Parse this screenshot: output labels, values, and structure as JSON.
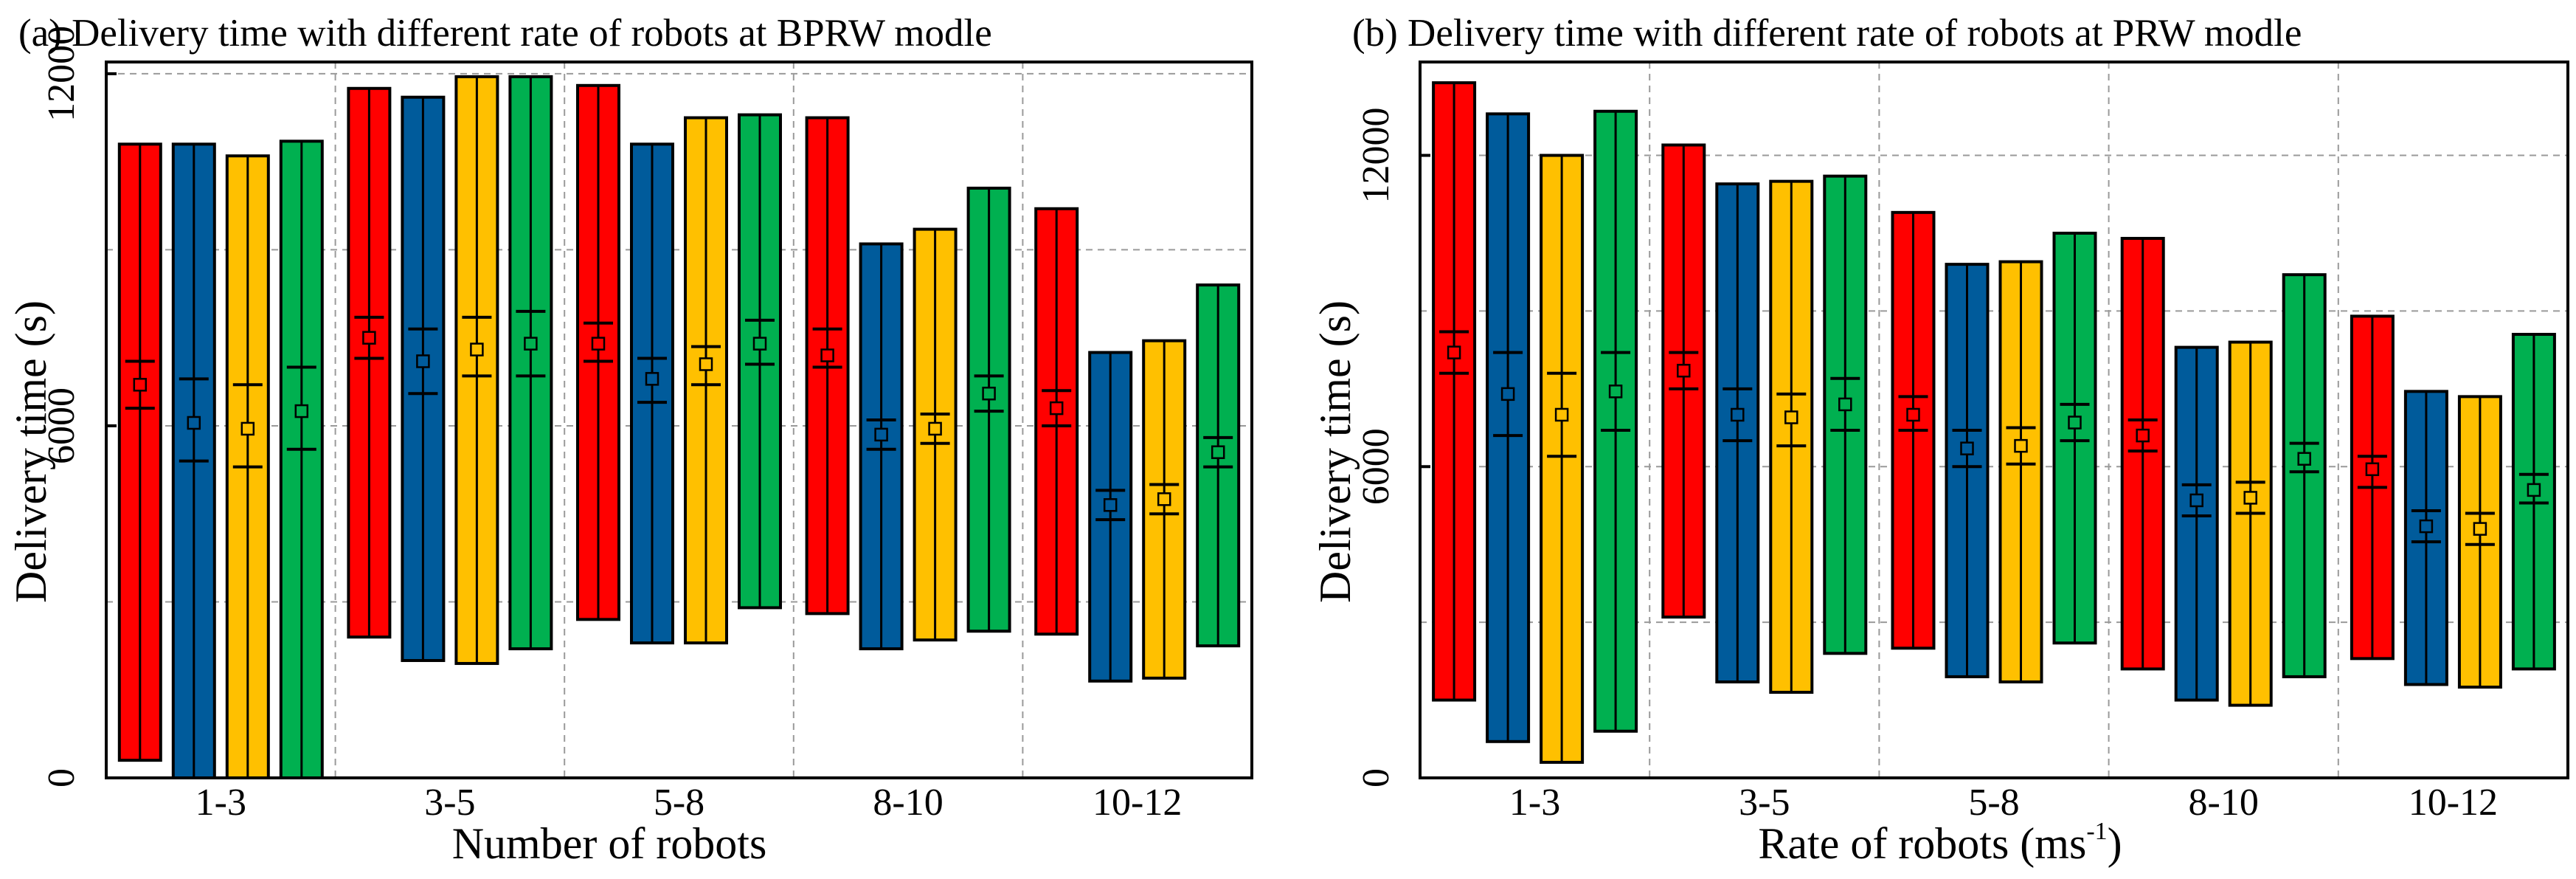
{
  "colors": {
    "red": "#ff0000",
    "blue": "#005b9b",
    "yellow": "#ffc000",
    "green": "#00b050",
    "grid": "#9a9a9a"
  },
  "chart_data": [
    {
      "type": "box",
      "title": "(a) Delivery time with different rate of robots at BPRW modle",
      "xlabel": "Number of robots",
      "ylabel": "Delivery time (s)",
      "categories": [
        "1-3",
        "3-5",
        "5-8",
        "8-10",
        "10-12"
      ],
      "ylim": [
        0,
        12200
      ],
      "yticks": [
        0,
        6000,
        12000
      ],
      "ytick_labels": [
        "0",
        "6000",
        "12000"
      ],
      "series_colors": [
        "red",
        "blue",
        "yellow",
        "green"
      ],
      "groups": [
        [
          {
            "low": 300,
            "high": 10800,
            "q1": 6300,
            "q3": 7100,
            "mean": 6700
          },
          {
            "low": 0,
            "high": 10800,
            "q1": 5400,
            "q3": 6800,
            "mean": 6050
          },
          {
            "low": 0,
            "high": 10600,
            "q1": 5300,
            "q3": 6700,
            "mean": 5950
          },
          {
            "low": 0,
            "high": 10850,
            "q1": 5600,
            "q3": 7000,
            "mean": 6250
          }
        ],
        [
          {
            "low": 2400,
            "high": 11750,
            "q1": 7150,
            "q3": 7850,
            "mean": 7500
          },
          {
            "low": 2000,
            "high": 11600,
            "q1": 6550,
            "q3": 7650,
            "mean": 7100
          },
          {
            "low": 1950,
            "high": 11950,
            "q1": 6850,
            "q3": 7850,
            "mean": 7300
          },
          {
            "low": 2200,
            "high": 11950,
            "q1": 6850,
            "q3": 7950,
            "mean": 7400
          }
        ],
        [
          {
            "low": 2700,
            "high": 11800,
            "q1": 7100,
            "q3": 7750,
            "mean": 7400
          },
          {
            "low": 2300,
            "high": 10800,
            "q1": 6400,
            "q3": 7150,
            "mean": 6800
          },
          {
            "low": 2300,
            "high": 11250,
            "q1": 6700,
            "q3": 7350,
            "mean": 7050
          },
          {
            "low": 2900,
            "high": 11300,
            "q1": 7050,
            "q3": 7800,
            "mean": 7400
          }
        ],
        [
          {
            "low": 2800,
            "high": 11250,
            "q1": 7000,
            "q3": 7650,
            "mean": 7200
          },
          {
            "low": 2200,
            "high": 9100,
            "q1": 5600,
            "q3": 6100,
            "mean": 5850
          },
          {
            "low": 2350,
            "high": 9350,
            "q1": 5700,
            "q3": 6200,
            "mean": 5950
          },
          {
            "low": 2500,
            "high": 10050,
            "q1": 6250,
            "q3": 6850,
            "mean": 6550
          }
        ],
        [
          {
            "low": 2450,
            "high": 9700,
            "q1": 6000,
            "q3": 6600,
            "mean": 6300
          },
          {
            "low": 1650,
            "high": 7250,
            "q1": 4400,
            "q3": 4900,
            "mean": 4650
          },
          {
            "low": 1700,
            "high": 7450,
            "q1": 4500,
            "q3": 5000,
            "mean": 4750
          },
          {
            "low": 2250,
            "high": 8400,
            "q1": 5300,
            "q3": 5800,
            "mean": 5550
          }
        ]
      ]
    },
    {
      "type": "box",
      "title": "(b) Delivery time with different rate of robots at PRW modle",
      "xlabel": "Rate of robots (ms",
      "xlabel_sup": "-1",
      "xlabel_end": ")",
      "ylabel": "Delivery time (s)",
      "categories": [
        "1-3",
        "3-5",
        "5-8",
        "8-10",
        "10-12"
      ],
      "ylim": [
        0,
        13800
      ],
      "yticks": [
        0,
        6000,
        12000
      ],
      "ytick_labels": [
        "0",
        "6000",
        "12000"
      ],
      "series_colors": [
        "red",
        "blue",
        "yellow",
        "green"
      ],
      "groups": [
        [
          {
            "low": 1500,
            "high": 13400,
            "q1": 7800,
            "q3": 8600,
            "mean": 8200
          },
          {
            "low": 700,
            "high": 12800,
            "q1": 6600,
            "q3": 8200,
            "mean": 7400
          },
          {
            "low": 300,
            "high": 12000,
            "q1": 6200,
            "q3": 7800,
            "mean": 7000
          },
          {
            "low": 900,
            "high": 12850,
            "q1": 6700,
            "q3": 8200,
            "mean": 7450
          }
        ],
        [
          {
            "low": 3100,
            "high": 12200,
            "q1": 7500,
            "q3": 8200,
            "mean": 7850
          },
          {
            "low": 1850,
            "high": 11450,
            "q1": 6500,
            "q3": 7500,
            "mean": 7000
          },
          {
            "low": 1650,
            "high": 11500,
            "q1": 6400,
            "q3": 7400,
            "mean": 6950
          },
          {
            "low": 2400,
            "high": 11600,
            "q1": 6700,
            "q3": 7700,
            "mean": 7200
          }
        ],
        [
          {
            "low": 2500,
            "high": 10900,
            "q1": 6700,
            "q3": 7350,
            "mean": 7000
          },
          {
            "low": 1950,
            "high": 9900,
            "q1": 6000,
            "q3": 6700,
            "mean": 6350
          },
          {
            "low": 1850,
            "high": 9950,
            "q1": 6050,
            "q3": 6750,
            "mean": 6400
          },
          {
            "low": 2600,
            "high": 10500,
            "q1": 6500,
            "q3": 7200,
            "mean": 6850
          }
        ],
        [
          {
            "low": 2100,
            "high": 10400,
            "q1": 6300,
            "q3": 6900,
            "mean": 6600
          },
          {
            "low": 1500,
            "high": 8300,
            "q1": 5050,
            "q3": 5650,
            "mean": 5350
          },
          {
            "low": 1400,
            "high": 8400,
            "q1": 5100,
            "q3": 5700,
            "mean": 5400
          },
          {
            "low": 1950,
            "high": 9700,
            "q1": 5900,
            "q3": 6450,
            "mean": 6150
          }
        ],
        [
          {
            "low": 2300,
            "high": 8900,
            "q1": 5600,
            "q3": 6200,
            "mean": 5950
          },
          {
            "low": 1800,
            "high": 7450,
            "q1": 4550,
            "q3": 5150,
            "mean": 4850
          },
          {
            "low": 1750,
            "high": 7350,
            "q1": 4500,
            "q3": 5100,
            "mean": 4800
          },
          {
            "low": 2100,
            "high": 8550,
            "q1": 5300,
            "q3": 5850,
            "mean": 5550
          }
        ]
      ]
    }
  ]
}
